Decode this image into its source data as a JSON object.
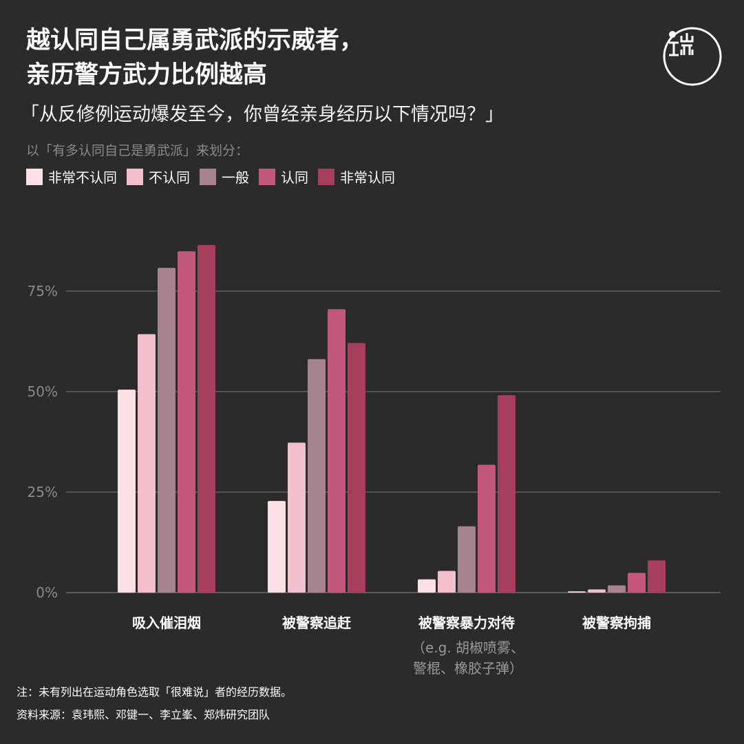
{
  "title": {
    "line1": "越认同自己属勇武派的示威者，",
    "line2": "亲历警方武力比例越高"
  },
  "subtitle": "「从反修例运动爆发至今，你曾经亲身经历以下情况吗？」",
  "legend_caption": "以「有多认同自己是勇武派」来划分：",
  "logo_icon": "initium-logo-icon",
  "colors": {
    "background": "#2b2b2b",
    "grid": "#6a6a6a",
    "axis_tick": "#8a8a8a"
  },
  "chart_data": {
    "type": "bar",
    "categories": [
      "吸入催泪烟",
      "被警察追赶",
      "被警察暴力对待",
      "被警察拘捕"
    ],
    "category_sublabels": [
      "",
      "",
      "（e.g. 胡椒喷雾、\n警棍、橡胶子弹）",
      ""
    ],
    "series": [
      {
        "name": "非常不认同",
        "color": "#fde0e6",
        "values": [
          50.5,
          22.8,
          3.3,
          0.3
        ]
      },
      {
        "name": "不认同",
        "color": "#f2bfcc",
        "values": [
          64.3,
          37.3,
          5.4,
          0.8
        ]
      },
      {
        "name": "一般",
        "color": "#a6838f",
        "values": [
          80.8,
          58.1,
          16.5,
          1.8
        ]
      },
      {
        "name": "认同",
        "color": "#c4577e",
        "values": [
          84.9,
          70.5,
          31.8,
          4.9
        ]
      },
      {
        "name": "非常认同",
        "color": "#a83e5e",
        "values": [
          86.5,
          62.1,
          49.1,
          8.0
        ]
      }
    ],
    "ylim": [
      0,
      90
    ],
    "yticks": [
      0,
      25,
      50,
      75
    ],
    "ytick_labels": [
      "0%",
      "25%",
      "50%",
      "75%"
    ],
    "grid": true,
    "legend_position": "top-left"
  },
  "footnotes": {
    "note": "注：未有列出在运动角色选取「很难说」者的经历数据。",
    "source": "资料来源：袁玮熙、邓键一、李立峯、郑炜研究团队"
  }
}
